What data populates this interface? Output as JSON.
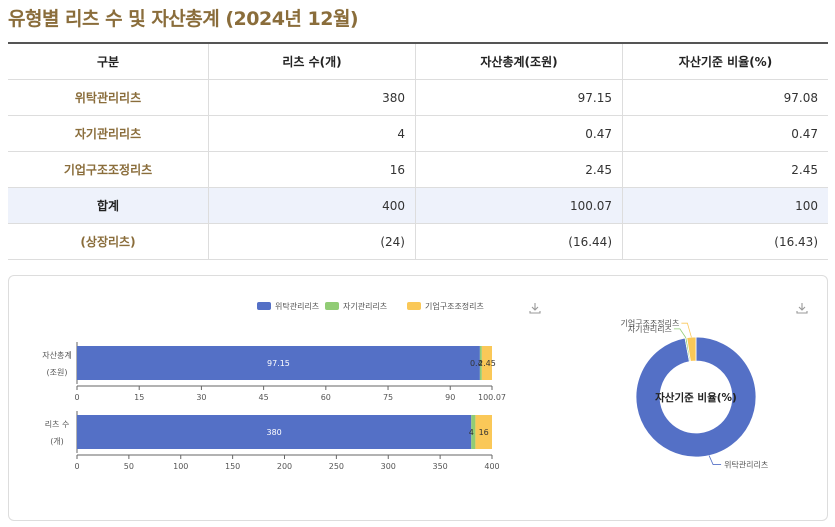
{
  "title": "유형별 리츠 수 및 자산총계 (2024년 12월)",
  "table": {
    "headers": [
      "구분",
      "리츠 수(개)",
      "자산총계(조원)",
      "자산기준 비율(%)"
    ],
    "rows": [
      {
        "label": "위탁관리리츠",
        "count": "380",
        "assets": "97.15",
        "ratio": "97.08"
      },
      {
        "label": "자기관리리츠",
        "count": "4",
        "assets": "0.47",
        "ratio": "0.47"
      },
      {
        "label": "기업구조조정리츠",
        "count": "16",
        "assets": "2.45",
        "ratio": "2.45"
      },
      {
        "label": "합계",
        "count": "400",
        "assets": "100.07",
        "ratio": "100"
      },
      {
        "label": "(상장리츠)",
        "count": "(24)",
        "assets": "(16.44)",
        "ratio": "(16.43)"
      }
    ]
  },
  "download_icon": "download-icon",
  "chart_data": [
    {
      "type": "bar",
      "orientation": "horizontal-stacked",
      "legend": [
        "위탁관리리츠",
        "자기관리리츠",
        "기업구조조정리츠"
      ],
      "legend_position": "top",
      "colors": [
        "#5470c6",
        "#91cc75",
        "#fac858"
      ],
      "bars": [
        {
          "label_lines": [
            "자산총계",
            "(조원)"
          ],
          "values": [
            97.15,
            0.47,
            2.45
          ],
          "labels": [
            "97.15",
            "0.47",
            "2.45"
          ],
          "ticks": [
            "0",
            "15",
            "30",
            "45",
            "60",
            "75",
            "90",
            "100.07"
          ],
          "xlim": [
            0,
            100.07
          ]
        },
        {
          "label_lines": [
            "리츠 수",
            "(개)"
          ],
          "values": [
            380,
            4,
            16
          ],
          "labels": [
            "380",
            "4",
            "16"
          ],
          "ticks": [
            "0",
            "50",
            "100",
            "150",
            "200",
            "250",
            "300",
            "350",
            "400"
          ],
          "xlim": [
            0,
            400
          ]
        }
      ]
    },
    {
      "type": "pie",
      "style": "donut",
      "title": "자산기준 비율(%)",
      "slices": [
        {
          "name": "위탁관리리츠",
          "value": 97.08,
          "color": "#5470c6"
        },
        {
          "name": "자기관리리츠",
          "value": 0.47,
          "color": "#91cc75"
        },
        {
          "name": "기업구조조정리츠",
          "value": 2.45,
          "color": "#fac858"
        }
      ]
    }
  ]
}
